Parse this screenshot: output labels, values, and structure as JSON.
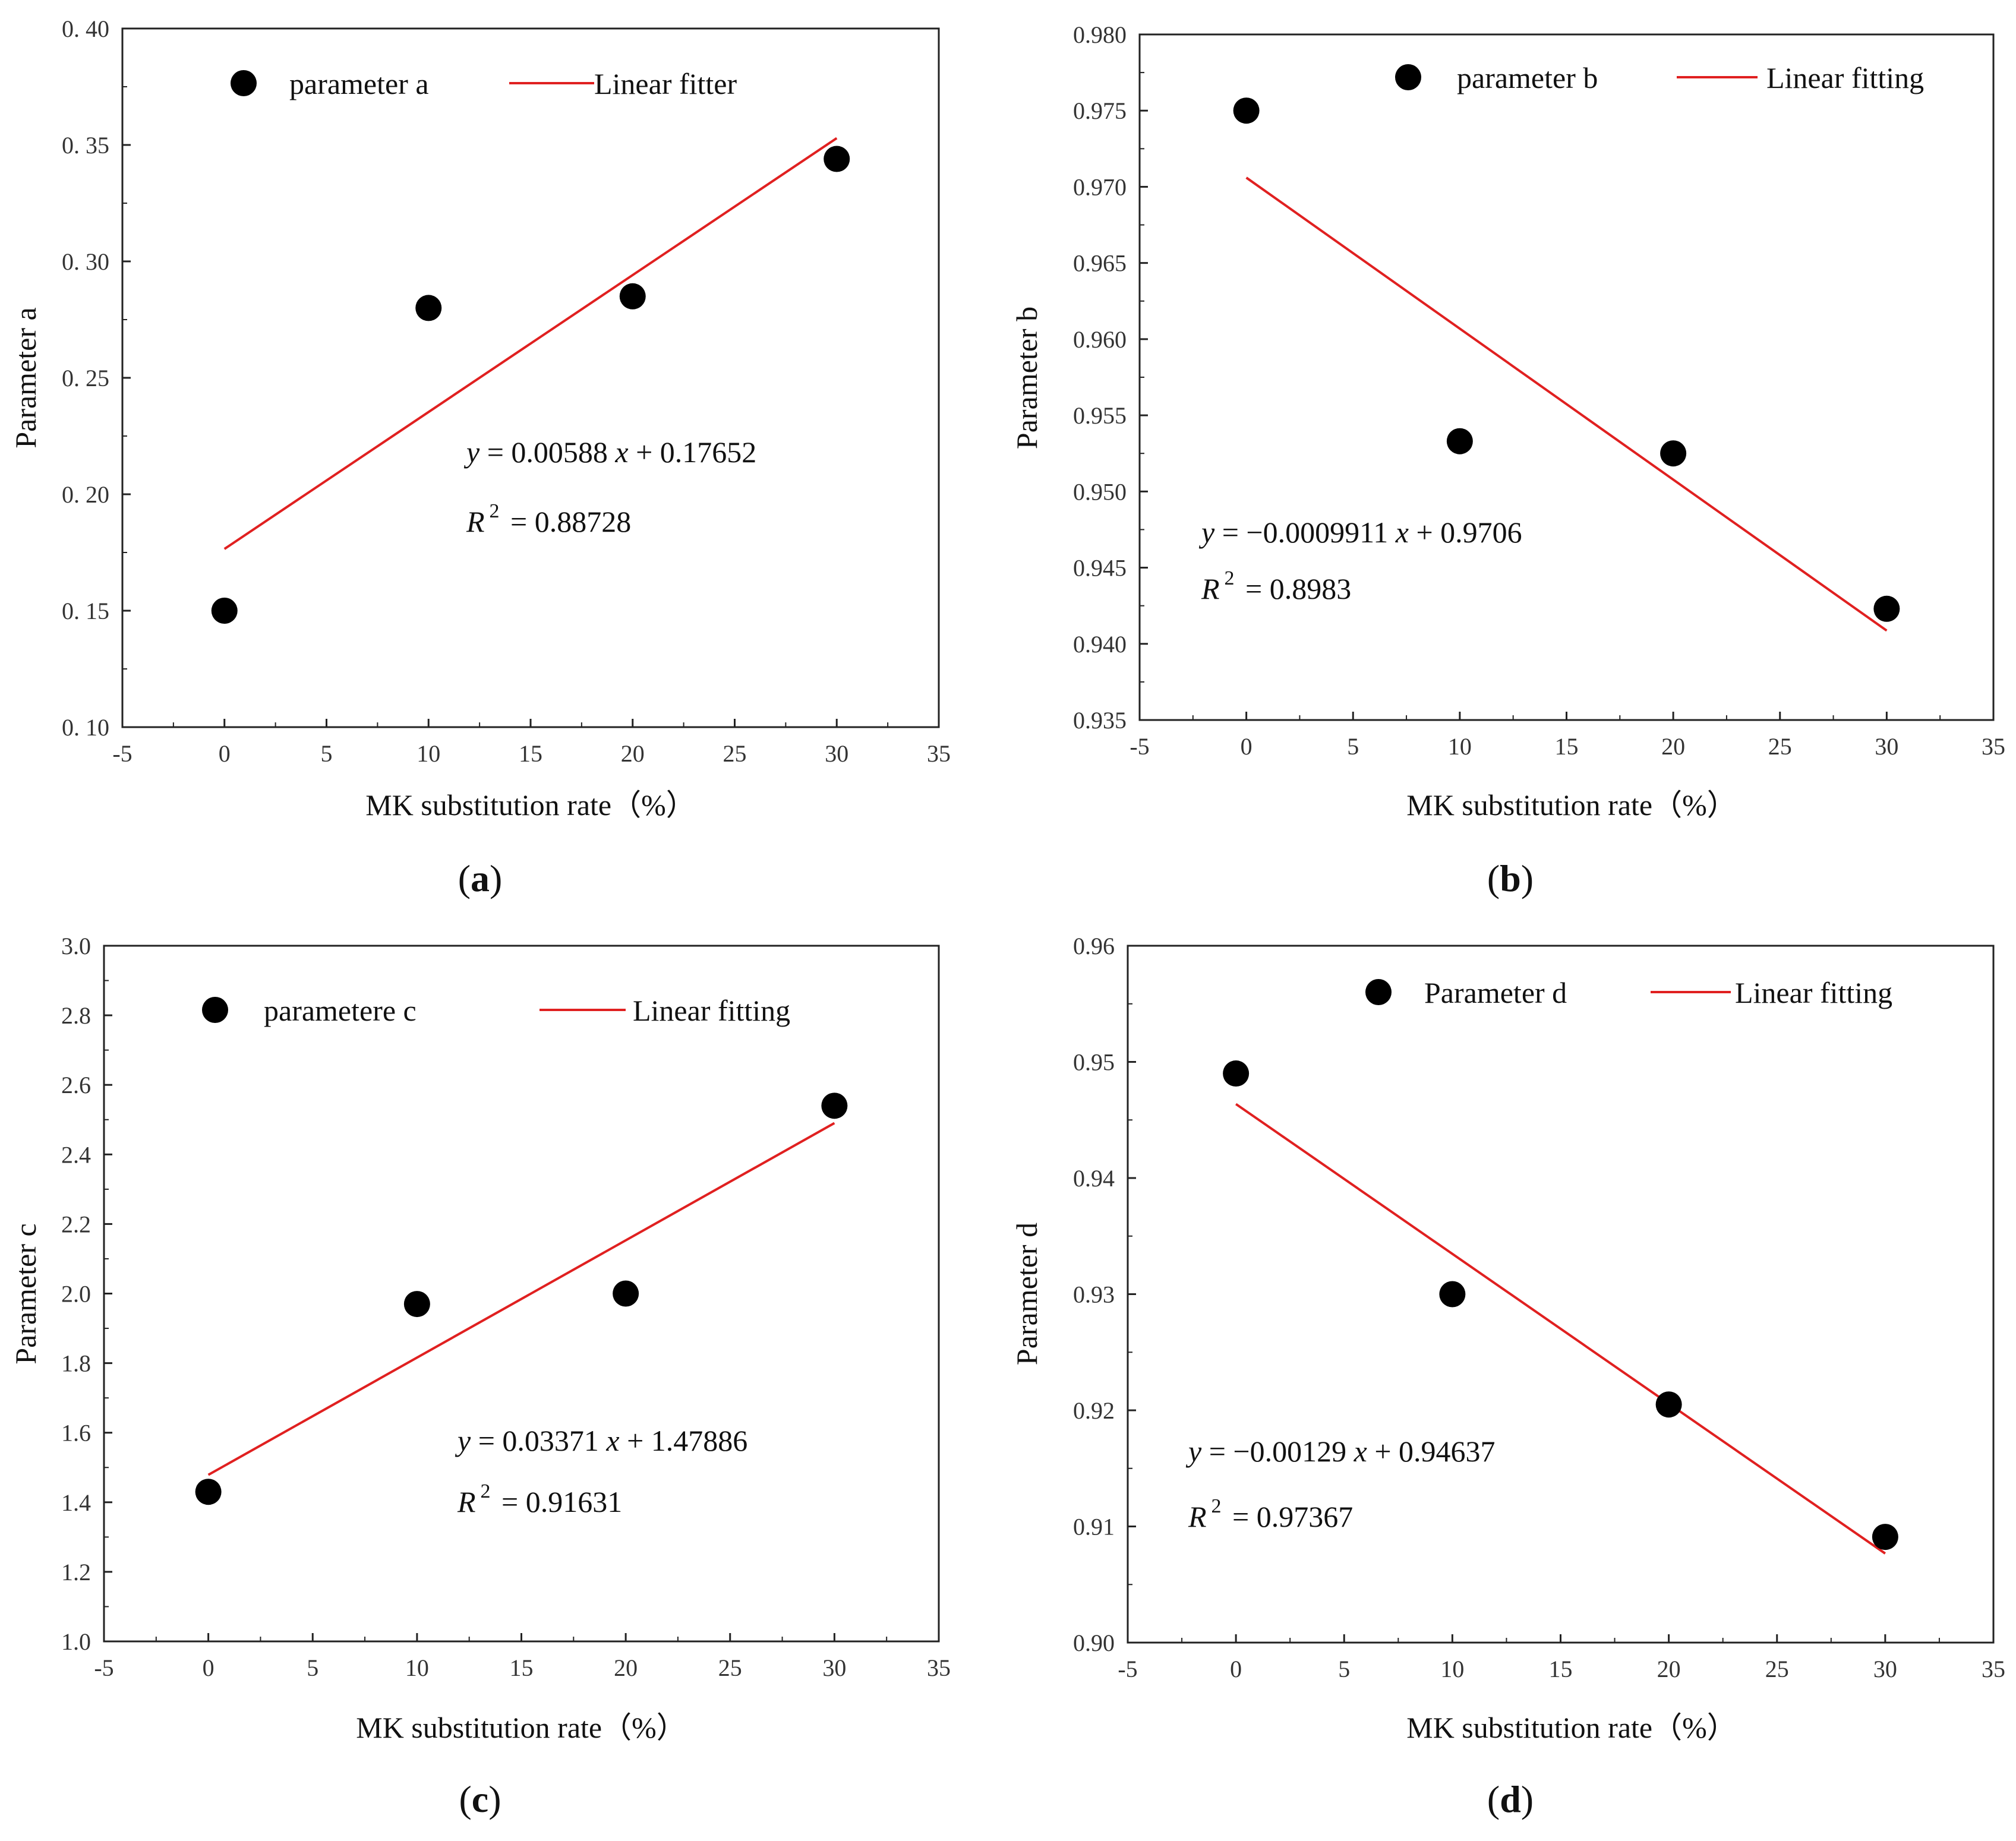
{
  "chart_data": [
    {
      "id": "a",
      "type": "scatter",
      "caption": "a",
      "xlabel": "MK substitution rate（%）",
      "ylabel": "Parameter a",
      "xlim": [
        -5,
        35
      ],
      "ylim": [
        0.1,
        0.4
      ],
      "x_ticks": [
        -5,
        0,
        5,
        10,
        15,
        20,
        25,
        30,
        35
      ],
      "y_ticks": [
        0.1,
        0.15,
        0.2,
        0.25,
        0.3,
        0.35,
        0.4
      ],
      "x_tick_labels": [
        "-5",
        "0",
        "5",
        "10",
        "15",
        "20",
        "25",
        "30",
        "35"
      ],
      "y_tick_labels": [
        "0. 10",
        "0. 15",
        "0. 20",
        "0. 25",
        "0. 30",
        "0. 35",
        "0. 40"
      ],
      "series": [
        {
          "name": "parameter a",
          "kind": "points",
          "x": [
            0,
            10,
            20,
            30
          ],
          "y": [
            0.15,
            0.28,
            0.285,
            0.344
          ]
        },
        {
          "name": "Linear fitter",
          "kind": "line",
          "slope": 0.00588,
          "intercept": 0.17652,
          "x_range": [
            0,
            30
          ],
          "color": "#e02020"
        }
      ],
      "legend": {
        "points_label": "parameter a",
        "line_label": "Linear fitter",
        "placement": "top"
      },
      "equation": {
        "y": "y",
        "x": "x",
        "eq": " = 0.00588 ",
        "rest": " + 0.17652",
        "r": "R",
        "r_exp": "2",
        "r_val": " = 0.88728"
      }
    },
    {
      "id": "b",
      "type": "scatter",
      "caption": "b",
      "xlabel": "MK substitution rate（%）",
      "ylabel": "Parameter b",
      "xlim": [
        -5,
        35
      ],
      "ylim": [
        0.935,
        0.98
      ],
      "x_ticks": [
        -5,
        0,
        5,
        10,
        15,
        20,
        25,
        30,
        35
      ],
      "y_ticks": [
        0.935,
        0.94,
        0.945,
        0.95,
        0.955,
        0.96,
        0.965,
        0.97,
        0.975,
        0.98
      ],
      "x_tick_labels": [
        "-5",
        "0",
        "5",
        "10",
        "15",
        "20",
        "25",
        "30",
        "35"
      ],
      "y_tick_labels": [
        "0.935",
        "0.940",
        "0.945",
        "0.950",
        "0.955",
        "0.960",
        "0.965",
        "0.970",
        "0.975",
        "0.980"
      ],
      "series": [
        {
          "name": "parameter b",
          "kind": "points",
          "x": [
            0,
            10,
            20,
            30
          ],
          "y": [
            0.975,
            0.9533,
            0.9525,
            0.9423
          ]
        },
        {
          "name": "Linear fitting",
          "kind": "line",
          "slope": -0.0009911,
          "intercept": 0.9706,
          "x_range": [
            0,
            30
          ],
          "color": "#e02020"
        }
      ],
      "legend": {
        "points_label": "parameter b",
        "line_label": "Linear fitting",
        "placement": "top-right"
      },
      "equation": {
        "y": "y",
        "x": "x",
        "eq": " = −0.0009911 ",
        "rest": " + 0.9706",
        "r": "R",
        "r_exp": "2",
        "r_val": " = 0.8983"
      }
    },
    {
      "id": "c",
      "type": "scatter",
      "caption": "c",
      "xlabel": "MK substitution rate（%）",
      "ylabel": "Parameter c",
      "xlim": [
        -5,
        35
      ],
      "ylim": [
        1.0,
        3.0
      ],
      "x_ticks": [
        -5,
        0,
        5,
        10,
        15,
        20,
        25,
        30,
        35
      ],
      "y_ticks": [
        1.0,
        1.2,
        1.4,
        1.6,
        1.8,
        2.0,
        2.2,
        2.4,
        2.6,
        2.8,
        3.0
      ],
      "x_tick_labels": [
        "-5",
        "0",
        "5",
        "10",
        "15",
        "20",
        "25",
        "30",
        "35"
      ],
      "y_tick_labels": [
        "1.0",
        "1.2",
        "1.4",
        "1.6",
        "1.8",
        "2.0",
        "2.2",
        "2.4",
        "2.6",
        "2.8",
        "3.0"
      ],
      "series": [
        {
          "name": "parametere c",
          "kind": "points",
          "x": [
            0,
            10,
            20,
            30
          ],
          "y": [
            1.43,
            1.97,
            2.0,
            2.54
          ]
        },
        {
          "name": "Linear fitting",
          "kind": "line",
          "slope": 0.03371,
          "intercept": 1.47886,
          "x_range": [
            0,
            30
          ],
          "color": "#e02020"
        }
      ],
      "legend": {
        "points_label": "parametere c",
        "line_label": "Linear fitting",
        "placement": "top"
      },
      "equation": {
        "y": "y",
        "x": "x",
        "eq": " = 0.03371 ",
        "rest": " + 1.47886",
        "r": "R",
        "r_exp": "2",
        "r_val": " = 0.91631"
      }
    },
    {
      "id": "d",
      "type": "scatter",
      "caption": "d",
      "xlabel": "MK substitution rate（%）",
      "ylabel": "Parameter d",
      "xlim": [
        -5,
        35
      ],
      "ylim": [
        0.9,
        0.96
      ],
      "x_ticks": [
        -5,
        0,
        5,
        10,
        15,
        20,
        25,
        30,
        35
      ],
      "y_ticks": [
        0.9,
        0.91,
        0.92,
        0.93,
        0.94,
        0.95,
        0.96
      ],
      "x_tick_labels": [
        "-5",
        "0",
        "5",
        "10",
        "15",
        "20",
        "25",
        "30",
        "35"
      ],
      "y_tick_labels": [
        "0.90",
        "0.91",
        "0.92",
        "0.93",
        "0.94",
        "0.95",
        "0.96"
      ],
      "series": [
        {
          "name": "Parameter d",
          "kind": "points",
          "x": [
            0,
            10,
            20,
            30
          ],
          "y": [
            0.949,
            0.93,
            0.9205,
            0.9091
          ]
        },
        {
          "name": "Linear fitting",
          "kind": "line",
          "slope": -0.00129,
          "intercept": 0.94637,
          "x_range": [
            0,
            30
          ],
          "color": "#e02020"
        }
      ],
      "legend": {
        "points_label": "Parameter d",
        "line_label": "Linear fitting",
        "placement": "top"
      },
      "equation": {
        "y": "y",
        "x": "x",
        "eq": " = −0.00129 ",
        "rest": " + 0.94637",
        "r": "R",
        "r_exp": "2",
        "r_val": " = 0.97367"
      }
    }
  ]
}
